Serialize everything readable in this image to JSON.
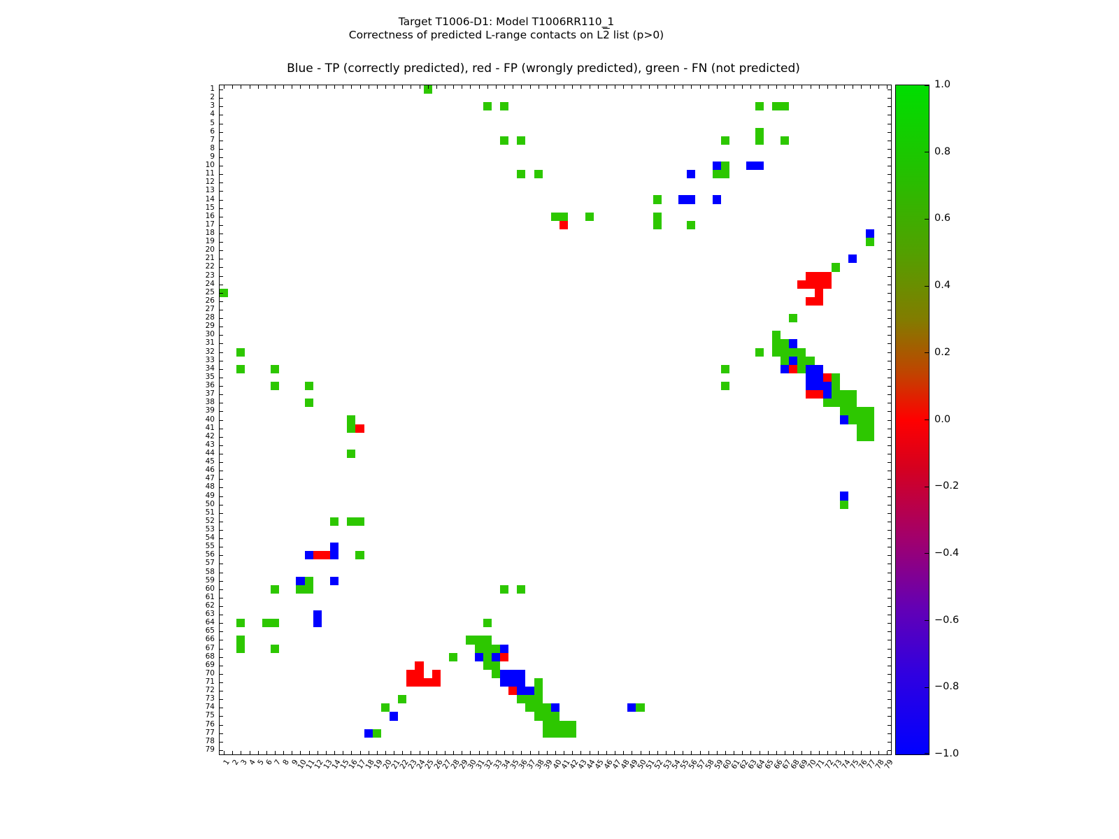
{
  "title": {
    "line1": "Target T1006-D1: Model T1006RR110_1",
    "line2_pre": "Correctness of predicted L-range contacts on L",
    "line2_bar": "2",
    "line2_post": " list (p>0)"
  },
  "legend_line": "Blue - TP (correctly predicted), red - FP (wrongly predicted), green - FN (not predicted)",
  "colors": {
    "tp": "#0000ff",
    "fp": "#ff0000",
    "fn": "#2dc700"
  },
  "colorbar": {
    "tick_labels": [
      "1.0",
      "0.8",
      "0.6",
      "0.4",
      "0.2",
      "0.0",
      "−0.2",
      "−0.4",
      "−0.6",
      "−0.8",
      "−1.0"
    ]
  },
  "chart_data": {
    "type": "heatmap",
    "title": "Target T1006-D1: Model T1006RR110_1 — Correctness of predicted L-range contacts on L2 list (p>0)",
    "subtitle": "Blue - TP (correctly predicted), red - FP (wrongly predicted), green - FN (not predicted)",
    "x_range": [
      1,
      79
    ],
    "y_range": [
      1,
      79
    ],
    "grid": false,
    "legend_position": "right-colorbar",
    "colorbar_range": [
      -1.0,
      1.0
    ],
    "cells": {
      "fn": [
        [
          25,
          1
        ],
        [
          32,
          3
        ],
        [
          34,
          3
        ],
        [
          64,
          3
        ],
        [
          66,
          3
        ],
        [
          67,
          3
        ],
        [
          64,
          6
        ],
        [
          34,
          7
        ],
        [
          36,
          7
        ],
        [
          60,
          7
        ],
        [
          64,
          7
        ],
        [
          67,
          7
        ],
        [
          60,
          10
        ],
        [
          36,
          11
        ],
        [
          38,
          11
        ],
        [
          59,
          11
        ],
        [
          60,
          11
        ],
        [
          52,
          14
        ],
        [
          40,
          16
        ],
        [
          41,
          16
        ],
        [
          44,
          16
        ],
        [
          52,
          16
        ],
        [
          52,
          17
        ],
        [
          56,
          17
        ],
        [
          77,
          19
        ],
        [
          73,
          22
        ],
        [
          1,
          25
        ],
        [
          68,
          28
        ],
        [
          66,
          30
        ],
        [
          66,
          31
        ],
        [
          67,
          31
        ],
        [
          3,
          32
        ],
        [
          64,
          32
        ],
        [
          66,
          32
        ],
        [
          67,
          32
        ],
        [
          68,
          32
        ],
        [
          69,
          32
        ],
        [
          67,
          33
        ],
        [
          69,
          33
        ],
        [
          70,
          33
        ],
        [
          3,
          34
        ],
        [
          7,
          34
        ],
        [
          60,
          34
        ],
        [
          69,
          34
        ],
        [
          73,
          35
        ],
        [
          7,
          36
        ],
        [
          11,
          36
        ],
        [
          60,
          36
        ],
        [
          73,
          36
        ],
        [
          73,
          37
        ],
        [
          74,
          37
        ],
        [
          75,
          37
        ],
        [
          11,
          38
        ],
        [
          72,
          38
        ],
        [
          73,
          38
        ],
        [
          74,
          38
        ],
        [
          75,
          38
        ],
        [
          74,
          39
        ],
        [
          75,
          39
        ],
        [
          76,
          39
        ],
        [
          77,
          39
        ],
        [
          16,
          40
        ],
        [
          75,
          40
        ],
        [
          76,
          40
        ],
        [
          77,
          40
        ],
        [
          16,
          41
        ],
        [
          76,
          41
        ],
        [
          77,
          41
        ],
        [
          76,
          42
        ],
        [
          77,
          42
        ],
        [
          16,
          44
        ],
        [
          74,
          50
        ],
        [
          14,
          52
        ],
        [
          16,
          52
        ],
        [
          17,
          52
        ],
        [
          17,
          56
        ],
        [
          11,
          59
        ],
        [
          7,
          60
        ],
        [
          10,
          60
        ],
        [
          11,
          60
        ],
        [
          34,
          60
        ],
        [
          36,
          60
        ],
        [
          3,
          64
        ],
        [
          6,
          64
        ],
        [
          7,
          64
        ],
        [
          32,
          64
        ],
        [
          3,
          66
        ],
        [
          30,
          66
        ],
        [
          31,
          66
        ],
        [
          32,
          66
        ],
        [
          3,
          67
        ],
        [
          7,
          67
        ],
        [
          31,
          67
        ],
        [
          32,
          67
        ],
        [
          33,
          67
        ],
        [
          28,
          68
        ],
        [
          32,
          68
        ],
        [
          32,
          69
        ],
        [
          33,
          69
        ],
        [
          33,
          70
        ],
        [
          38,
          71
        ],
        [
          38,
          72
        ],
        [
          22,
          73
        ],
        [
          36,
          73
        ],
        [
          37,
          73
        ],
        [
          38,
          73
        ],
        [
          20,
          74
        ],
        [
          37,
          74
        ],
        [
          38,
          74
        ],
        [
          39,
          74
        ],
        [
          50,
          74
        ],
        [
          38,
          75
        ],
        [
          39,
          75
        ],
        [
          40,
          75
        ],
        [
          39,
          76
        ],
        [
          40,
          76
        ],
        [
          41,
          76
        ],
        [
          42,
          76
        ],
        [
          19,
          77
        ],
        [
          39,
          77
        ],
        [
          40,
          77
        ],
        [
          41,
          77
        ],
        [
          42,
          77
        ]
      ],
      "tp": [
        [
          59,
          10
        ],
        [
          63,
          10
        ],
        [
          64,
          10
        ],
        [
          56,
          11
        ],
        [
          55,
          14
        ],
        [
          56,
          14
        ],
        [
          59,
          14
        ],
        [
          77,
          18
        ],
        [
          75,
          21
        ],
        [
          68,
          31
        ],
        [
          68,
          33
        ],
        [
          67,
          34
        ],
        [
          70,
          34
        ],
        [
          71,
          34
        ],
        [
          70,
          35
        ],
        [
          71,
          35
        ],
        [
          70,
          36
        ],
        [
          71,
          36
        ],
        [
          72,
          36
        ],
        [
          72,
          37
        ],
        [
          74,
          40
        ],
        [
          74,
          49
        ],
        [
          14,
          55
        ],
        [
          11,
          56
        ],
        [
          14,
          56
        ],
        [
          10,
          59
        ],
        [
          14,
          59
        ],
        [
          12,
          63
        ],
        [
          12,
          64
        ],
        [
          34,
          67
        ],
        [
          31,
          68
        ],
        [
          33,
          68
        ],
        [
          34,
          70
        ],
        [
          35,
          70
        ],
        [
          36,
          70
        ],
        [
          34,
          71
        ],
        [
          35,
          71
        ],
        [
          36,
          71
        ],
        [
          36,
          72
        ],
        [
          37,
          72
        ],
        [
          40,
          74
        ],
        [
          49,
          74
        ],
        [
          21,
          75
        ],
        [
          18,
          77
        ]
      ],
      "fp": [
        [
          41,
          17
        ],
        [
          70,
          23
        ],
        [
          71,
          23
        ],
        [
          72,
          23
        ],
        [
          69,
          24
        ],
        [
          70,
          24
        ],
        [
          71,
          24
        ],
        [
          72,
          24
        ],
        [
          71,
          25
        ],
        [
          70,
          26
        ],
        [
          71,
          26
        ],
        [
          68,
          34
        ],
        [
          72,
          35
        ],
        [
          70,
          37
        ],
        [
          71,
          37
        ],
        [
          17,
          41
        ],
        [
          12,
          56
        ],
        [
          13,
          56
        ],
        [
          34,
          68
        ],
        [
          24,
          69
        ],
        [
          23,
          70
        ],
        [
          24,
          70
        ],
        [
          26,
          70
        ],
        [
          23,
          71
        ],
        [
          24,
          71
        ],
        [
          25,
          71
        ],
        [
          26,
          71
        ],
        [
          35,
          72
        ]
      ]
    }
  }
}
